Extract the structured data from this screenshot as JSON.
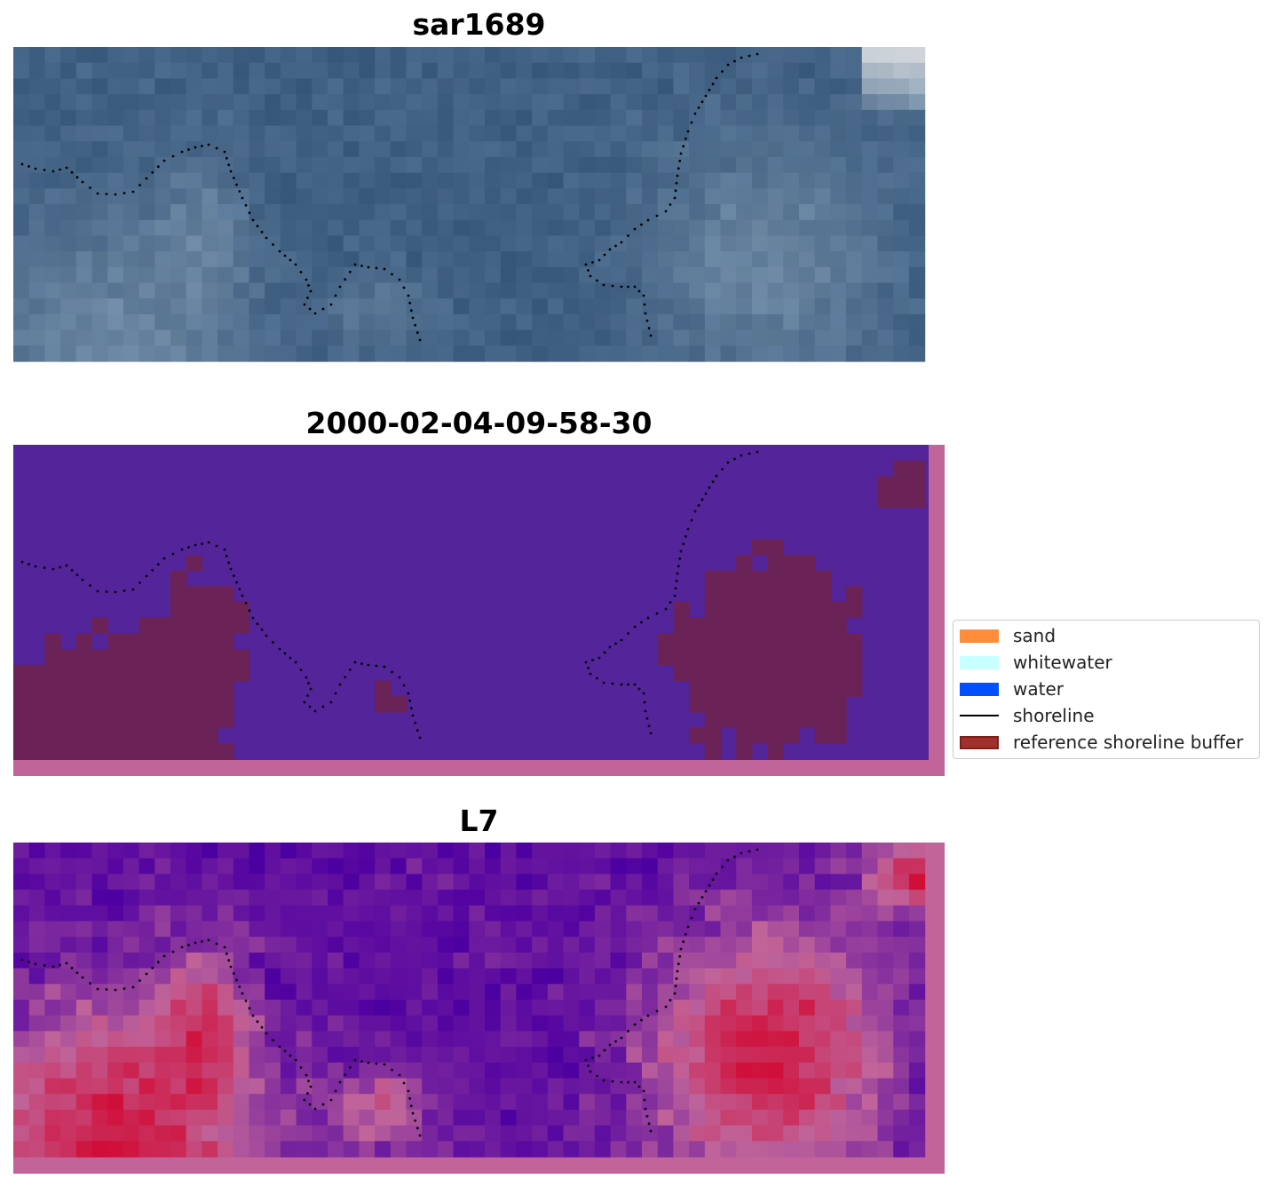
{
  "panels": [
    {
      "title": "sar1689"
    },
    {
      "title": "2000-02-04-09-58-30"
    },
    {
      "title": "L7"
    }
  ],
  "legend": {
    "items": [
      {
        "label": "sand",
        "color": "#ff8c3a"
      },
      {
        "label": "whitewater",
        "color": "#c8ffff"
      },
      {
        "label": "water",
        "color": "#0050ff"
      },
      {
        "label": "shoreline",
        "color": "#000000"
      },
      {
        "label": "reference shoreline buffer",
        "color": "#a0302b"
      }
    ]
  },
  "colors": {
    "rgb_base": "#3f5f82",
    "classification_background": "#53249a",
    "classification_buffer": "#6b2357",
    "classification_border": "#c0649a",
    "mndwi_low": "#5a0aa0",
    "mndwi_high": "#d0103a"
  }
}
